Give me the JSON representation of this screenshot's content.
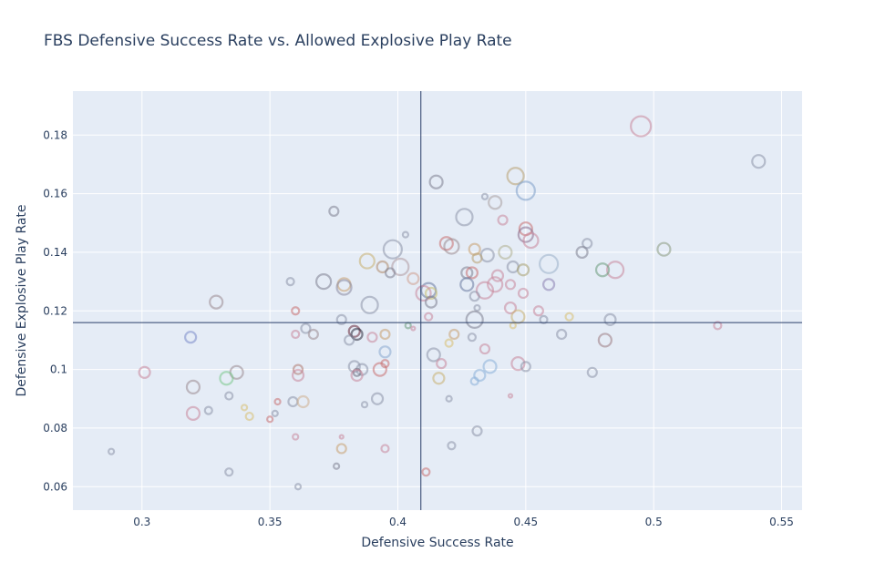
{
  "colors": {
    "plot_background": "#e5ecf6",
    "grid": "#ffffff",
    "reference_line": "#2a3f6a",
    "text": "#2a3f5f"
  },
  "chart_data": {
    "type": "scatter",
    "title": "FBS Defensive Success Rate vs. Allowed Explosive Play Rate",
    "xlabel": "Defensive Success Rate",
    "ylabel": "Defensive Explosive Play Rate",
    "xlim": [
      0.273,
      0.558
    ],
    "ylim": [
      0.052,
      0.195
    ],
    "xticks": [
      0.3,
      0.35,
      0.4,
      0.45,
      0.5,
      0.55
    ],
    "xtick_labels": [
      "0.3",
      "0.35",
      "0.4",
      "0.45",
      "0.5",
      "0.55"
    ],
    "yticks": [
      0.06,
      0.08,
      0.1,
      0.12,
      0.14,
      0.16,
      0.18
    ],
    "ytick_labels": [
      "0.06",
      "0.08",
      "0.1",
      "0.12",
      "0.14",
      "0.16",
      "0.18"
    ],
    "grid": true,
    "legend": "none",
    "reference_lines": {
      "x": 0.409,
      "y": 0.116
    },
    "marker_style": "hollow circles, size varies, semi-transparent",
    "points": [
      {
        "x": 0.495,
        "y": 0.183,
        "s": 11,
        "c": "#c8869a"
      },
      {
        "x": 0.541,
        "y": 0.171,
        "s": 7,
        "c": "#8d93a8"
      },
      {
        "x": 0.446,
        "y": 0.166,
        "s": 9,
        "c": "#b8a070"
      },
      {
        "x": 0.415,
        "y": 0.164,
        "s": 7,
        "c": "#7d8090"
      },
      {
        "x": 0.45,
        "y": 0.161,
        "s": 10,
        "c": "#7e9fc9"
      },
      {
        "x": 0.434,
        "y": 0.159,
        "s": 3,
        "c": "#8d93a8"
      },
      {
        "x": 0.438,
        "y": 0.157,
        "s": 7,
        "c": "#a9a0a0"
      },
      {
        "x": 0.375,
        "y": 0.154,
        "s": 5,
        "c": "#7d8090"
      },
      {
        "x": 0.426,
        "y": 0.152,
        "s": 9,
        "c": "#8d93a8"
      },
      {
        "x": 0.441,
        "y": 0.151,
        "s": 5,
        "c": "#c8869a"
      },
      {
        "x": 0.45,
        "y": 0.148,
        "s": 7,
        "c": "#c87070"
      },
      {
        "x": 0.45,
        "y": 0.146,
        "s": 8,
        "c": "#8a6b8a"
      },
      {
        "x": 0.403,
        "y": 0.146,
        "s": 3,
        "c": "#8d93a8"
      },
      {
        "x": 0.452,
        "y": 0.144,
        "s": 8,
        "c": "#c8869a"
      },
      {
        "x": 0.419,
        "y": 0.143,
        "s": 7,
        "c": "#c87070"
      },
      {
        "x": 0.474,
        "y": 0.143,
        "s": 5,
        "c": "#8d93a8"
      },
      {
        "x": 0.421,
        "y": 0.142,
        "s": 8,
        "c": "#9a8a90"
      },
      {
        "x": 0.398,
        "y": 0.141,
        "s": 10,
        "c": "#8d93a8"
      },
      {
        "x": 0.43,
        "y": 0.141,
        "s": 6,
        "c": "#c8a070"
      },
      {
        "x": 0.504,
        "y": 0.141,
        "s": 7,
        "c": "#8a9a80"
      },
      {
        "x": 0.442,
        "y": 0.14,
        "s": 7,
        "c": "#b0b090"
      },
      {
        "x": 0.472,
        "y": 0.14,
        "s": 6,
        "c": "#7d8090"
      },
      {
        "x": 0.435,
        "y": 0.139,
        "s": 7,
        "c": "#8d93a8"
      },
      {
        "x": 0.431,
        "y": 0.138,
        "s": 5,
        "c": "#b8a070"
      },
      {
        "x": 0.388,
        "y": 0.137,
        "s": 8,
        "c": "#c8b070"
      },
      {
        "x": 0.459,
        "y": 0.136,
        "s": 10,
        "c": "#9ab0c8"
      },
      {
        "x": 0.401,
        "y": 0.135,
        "s": 9,
        "c": "#b09aa0"
      },
      {
        "x": 0.394,
        "y": 0.135,
        "s": 6,
        "c": "#b08a6a"
      },
      {
        "x": 0.445,
        "y": 0.135,
        "s": 6,
        "c": "#8d93a8"
      },
      {
        "x": 0.485,
        "y": 0.134,
        "s": 9,
        "c": "#c8869a"
      },
      {
        "x": 0.48,
        "y": 0.134,
        "s": 7,
        "c": "#6a9a7a"
      },
      {
        "x": 0.449,
        "y": 0.134,
        "s": 6,
        "c": "#a8a070"
      },
      {
        "x": 0.397,
        "y": 0.133,
        "s": 5,
        "c": "#7d8090"
      },
      {
        "x": 0.427,
        "y": 0.133,
        "s": 6,
        "c": "#7d8090"
      },
      {
        "x": 0.429,
        "y": 0.133,
        "s": 6,
        "c": "#c87070"
      },
      {
        "x": 0.439,
        "y": 0.132,
        "s": 6,
        "c": "#c8869a"
      },
      {
        "x": 0.406,
        "y": 0.131,
        "s": 6,
        "c": "#d0a090"
      },
      {
        "x": 0.371,
        "y": 0.13,
        "s": 8,
        "c": "#7d8090"
      },
      {
        "x": 0.379,
        "y": 0.129,
        "s": 7,
        "c": "#c8a070"
      },
      {
        "x": 0.358,
        "y": 0.13,
        "s": 4,
        "c": "#8d93a8"
      },
      {
        "x": 0.427,
        "y": 0.129,
        "s": 7,
        "c": "#6a7aa0"
      },
      {
        "x": 0.438,
        "y": 0.129,
        "s": 8,
        "c": "#c8869a"
      },
      {
        "x": 0.444,
        "y": 0.129,
        "s": 5,
        "c": "#c8869a"
      },
      {
        "x": 0.459,
        "y": 0.129,
        "s": 6,
        "c": "#8a80b0"
      },
      {
        "x": 0.379,
        "y": 0.128,
        "s": 8,
        "c": "#8a8aa0"
      },
      {
        "x": 0.434,
        "y": 0.127,
        "s": 9,
        "c": "#c8869a"
      },
      {
        "x": 0.412,
        "y": 0.127,
        "s": 8,
        "c": "#6a7aa0"
      },
      {
        "x": 0.413,
        "y": 0.126,
        "s": 6,
        "c": "#c8c070"
      },
      {
        "x": 0.41,
        "y": 0.126,
        "s": 8,
        "c": "#c8869a"
      },
      {
        "x": 0.43,
        "y": 0.125,
        "s": 5,
        "c": "#8d93a8"
      },
      {
        "x": 0.449,
        "y": 0.126,
        "s": 5,
        "c": "#c8869a"
      },
      {
        "x": 0.413,
        "y": 0.123,
        "s": 6,
        "c": "#7d8090"
      },
      {
        "x": 0.329,
        "y": 0.123,
        "s": 7,
        "c": "#9a8a90"
      },
      {
        "x": 0.389,
        "y": 0.122,
        "s": 9,
        "c": "#8d93a8"
      },
      {
        "x": 0.431,
        "y": 0.121,
        "s": 3,
        "c": "#8d93a8"
      },
      {
        "x": 0.444,
        "y": 0.121,
        "s": 6,
        "c": "#c8869a"
      },
      {
        "x": 0.455,
        "y": 0.12,
        "s": 5,
        "c": "#c8869a"
      },
      {
        "x": 0.36,
        "y": 0.12,
        "s": 4,
        "c": "#c87070"
      },
      {
        "x": 0.412,
        "y": 0.118,
        "s": 4,
        "c": "#c8869a"
      },
      {
        "x": 0.378,
        "y": 0.117,
        "s": 5,
        "c": "#8d93a8"
      },
      {
        "x": 0.447,
        "y": 0.118,
        "s": 7,
        "c": "#c8b070"
      },
      {
        "x": 0.467,
        "y": 0.118,
        "s": 4,
        "c": "#d8c070"
      },
      {
        "x": 0.43,
        "y": 0.117,
        "s": 9,
        "c": "#7d8090"
      },
      {
        "x": 0.457,
        "y": 0.117,
        "s": 4,
        "c": "#8d93a8"
      },
      {
        "x": 0.483,
        "y": 0.117,
        "s": 6,
        "c": "#8d93a8"
      },
      {
        "x": 0.404,
        "y": 0.115,
        "s": 3,
        "c": "#6a9a7a"
      },
      {
        "x": 0.406,
        "y": 0.114,
        "s": 2,
        "c": "#c8869a"
      },
      {
        "x": 0.445,
        "y": 0.115,
        "s": 3,
        "c": "#d8c070"
      },
      {
        "x": 0.525,
        "y": 0.115,
        "s": 4,
        "c": "#c8869a"
      },
      {
        "x": 0.364,
        "y": 0.114,
        "s": 5,
        "c": "#8d93a8"
      },
      {
        "x": 0.383,
        "y": 0.113,
        "s": 6,
        "c": "#6a2a3a"
      },
      {
        "x": 0.384,
        "y": 0.112,
        "s": 6,
        "c": "#2a2a3a"
      },
      {
        "x": 0.36,
        "y": 0.112,
        "s": 4,
        "c": "#c8869a"
      },
      {
        "x": 0.367,
        "y": 0.112,
        "s": 5,
        "c": "#9a8a90"
      },
      {
        "x": 0.395,
        "y": 0.112,
        "s": 5,
        "c": "#c8a070"
      },
      {
        "x": 0.422,
        "y": 0.112,
        "s": 5,
        "c": "#c8a070"
      },
      {
        "x": 0.429,
        "y": 0.111,
        "s": 4,
        "c": "#8d93a8"
      },
      {
        "x": 0.464,
        "y": 0.112,
        "s": 5,
        "c": "#8d93a8"
      },
      {
        "x": 0.319,
        "y": 0.111,
        "s": 6,
        "c": "#7a8ac8"
      },
      {
        "x": 0.39,
        "y": 0.111,
        "s": 5,
        "c": "#c8869a"
      },
      {
        "x": 0.481,
        "y": 0.11,
        "s": 7,
        "c": "#9a7a80"
      },
      {
        "x": 0.381,
        "y": 0.11,
        "s": 5,
        "c": "#8d93a8"
      },
      {
        "x": 0.42,
        "y": 0.109,
        "s": 4,
        "c": "#d8c070"
      },
      {
        "x": 0.434,
        "y": 0.107,
        "s": 5,
        "c": "#c8869a"
      },
      {
        "x": 0.395,
        "y": 0.106,
        "s": 6,
        "c": "#8aaad0"
      },
      {
        "x": 0.414,
        "y": 0.105,
        "s": 7,
        "c": "#8d93a8"
      },
      {
        "x": 0.417,
        "y": 0.102,
        "s": 5,
        "c": "#c8869a"
      },
      {
        "x": 0.436,
        "y": 0.101,
        "s": 7,
        "c": "#8ab0d8"
      },
      {
        "x": 0.447,
        "y": 0.102,
        "s": 7,
        "c": "#c8869a"
      },
      {
        "x": 0.45,
        "y": 0.101,
        "s": 5,
        "c": "#8d93a8"
      },
      {
        "x": 0.395,
        "y": 0.102,
        "s": 4,
        "c": "#c87070"
      },
      {
        "x": 0.383,
        "y": 0.101,
        "s": 6,
        "c": "#8d93a8"
      },
      {
        "x": 0.386,
        "y": 0.1,
        "s": 6,
        "c": "#8d93a8"
      },
      {
        "x": 0.384,
        "y": 0.099,
        "s": 4,
        "c": "#6a6a7a"
      },
      {
        "x": 0.393,
        "y": 0.1,
        "s": 7,
        "c": "#c87070"
      },
      {
        "x": 0.361,
        "y": 0.1,
        "s": 5,
        "c": "#b07a70"
      },
      {
        "x": 0.301,
        "y": 0.099,
        "s": 6,
        "c": "#c8869a"
      },
      {
        "x": 0.337,
        "y": 0.099,
        "s": 7,
        "c": "#9a8a90"
      },
      {
        "x": 0.476,
        "y": 0.099,
        "s": 5,
        "c": "#8d93a8"
      },
      {
        "x": 0.361,
        "y": 0.098,
        "s": 6,
        "c": "#c8869a"
      },
      {
        "x": 0.384,
        "y": 0.098,
        "s": 6,
        "c": "#c8869a"
      },
      {
        "x": 0.432,
        "y": 0.098,
        "s": 6,
        "c": "#8ab0d8"
      },
      {
        "x": 0.416,
        "y": 0.097,
        "s": 6,
        "c": "#c8b070"
      },
      {
        "x": 0.333,
        "y": 0.097,
        "s": 7,
        "c": "#7ac88a"
      },
      {
        "x": 0.43,
        "y": 0.096,
        "s": 4,
        "c": "#8ab0d8"
      },
      {
        "x": 0.32,
        "y": 0.094,
        "s": 7,
        "c": "#9a8a90"
      },
      {
        "x": 0.444,
        "y": 0.091,
        "s": 2,
        "c": "#c8869a"
      },
      {
        "x": 0.334,
        "y": 0.091,
        "s": 4,
        "c": "#8d93a8"
      },
      {
        "x": 0.359,
        "y": 0.089,
        "s": 5,
        "c": "#8d93a8"
      },
      {
        "x": 0.353,
        "y": 0.089,
        "s": 3,
        "c": "#c87070"
      },
      {
        "x": 0.363,
        "y": 0.089,
        "s": 6,
        "c": "#d0b090"
      },
      {
        "x": 0.392,
        "y": 0.09,
        "s": 6,
        "c": "#8d93a8"
      },
      {
        "x": 0.42,
        "y": 0.09,
        "s": 3,
        "c": "#8d93a8"
      },
      {
        "x": 0.387,
        "y": 0.088,
        "s": 3,
        "c": "#8d93a8"
      },
      {
        "x": 0.34,
        "y": 0.087,
        "s": 3,
        "c": "#d8c070"
      },
      {
        "x": 0.326,
        "y": 0.086,
        "s": 4,
        "c": "#8d93a8"
      },
      {
        "x": 0.352,
        "y": 0.085,
        "s": 3,
        "c": "#8d93a8"
      },
      {
        "x": 0.32,
        "y": 0.085,
        "s": 7,
        "c": "#c8869a"
      },
      {
        "x": 0.342,
        "y": 0.084,
        "s": 4,
        "c": "#d8c070"
      },
      {
        "x": 0.35,
        "y": 0.083,
        "s": 3,
        "c": "#c87070"
      },
      {
        "x": 0.431,
        "y": 0.079,
        "s": 5,
        "c": "#8d93a8"
      },
      {
        "x": 0.36,
        "y": 0.077,
        "s": 3,
        "c": "#c8869a"
      },
      {
        "x": 0.378,
        "y": 0.077,
        "s": 2,
        "c": "#c8869a"
      },
      {
        "x": 0.421,
        "y": 0.074,
        "s": 4,
        "c": "#8d93a8"
      },
      {
        "x": 0.378,
        "y": 0.073,
        "s": 5,
        "c": "#c8a070"
      },
      {
        "x": 0.395,
        "y": 0.073,
        "s": 4,
        "c": "#c8869a"
      },
      {
        "x": 0.288,
        "y": 0.072,
        "s": 3,
        "c": "#8d93a8"
      },
      {
        "x": 0.376,
        "y": 0.067,
        "s": 3,
        "c": "#7d8090"
      },
      {
        "x": 0.411,
        "y": 0.065,
        "s": 4,
        "c": "#c87070"
      },
      {
        "x": 0.334,
        "y": 0.065,
        "s": 4,
        "c": "#8d93a8"
      },
      {
        "x": 0.361,
        "y": 0.06,
        "s": 3,
        "c": "#8d93a8"
      }
    ]
  }
}
